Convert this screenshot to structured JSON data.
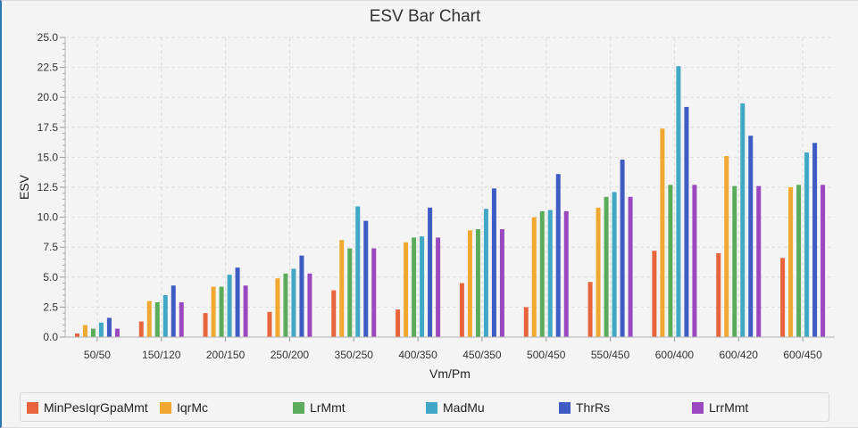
{
  "chart_data": {
    "type": "bar",
    "title": "ESV Bar Chart",
    "xlabel": "Vm/Pm",
    "ylabel": "ESV",
    "ylim": [
      0,
      25
    ],
    "yticks": [
      "0.0",
      "2.5",
      "5.0",
      "7.5",
      "10.0",
      "12.5",
      "15.0",
      "17.5",
      "20.0",
      "22.5",
      "25.0"
    ],
    "grid": true,
    "legend_position": "bottom",
    "categories": [
      "50/50",
      "150/120",
      "200/150",
      "250/200",
      "350/250",
      "400/350",
      "450/350",
      "500/450",
      "550/450",
      "600/400",
      "600/420",
      "600/450"
    ],
    "series": [
      {
        "name": "MinPesIqrGpaMmt",
        "color": "#e8643c",
        "values": [
          0.3,
          1.3,
          2.0,
          2.1,
          3.9,
          2.3,
          4.5,
          2.5,
          4.6,
          7.2,
          7.0,
          6.6
        ]
      },
      {
        "name": "IqrMc",
        "color": "#f0a830",
        "values": [
          1.0,
          3.0,
          4.2,
          4.9,
          8.1,
          7.9,
          8.9,
          10.0,
          10.8,
          17.4,
          15.1,
          12.5
        ]
      },
      {
        "name": "LrMmt",
        "color": "#5aac5a",
        "values": [
          0.7,
          2.9,
          4.2,
          5.3,
          7.4,
          8.3,
          9.0,
          10.5,
          11.7,
          12.7,
          12.6,
          12.7
        ]
      },
      {
        "name": "MadMu",
        "color": "#40a8c4",
        "values": [
          1.2,
          3.5,
          5.2,
          5.7,
          10.9,
          8.4,
          10.7,
          10.6,
          12.1,
          22.6,
          19.5,
          15.4
        ]
      },
      {
        "name": "ThrRs",
        "color": "#3e5cc4",
        "values": [
          1.6,
          4.3,
          5.8,
          6.8,
          9.7,
          10.8,
          12.4,
          13.6,
          14.8,
          19.2,
          16.8,
          16.2
        ]
      },
      {
        "name": "LrrMmt",
        "color": "#9a48c0",
        "values": [
          0.7,
          2.9,
          4.3,
          5.3,
          7.4,
          8.3,
          9.0,
          10.5,
          11.7,
          12.7,
          12.6,
          12.7
        ]
      }
    ]
  }
}
